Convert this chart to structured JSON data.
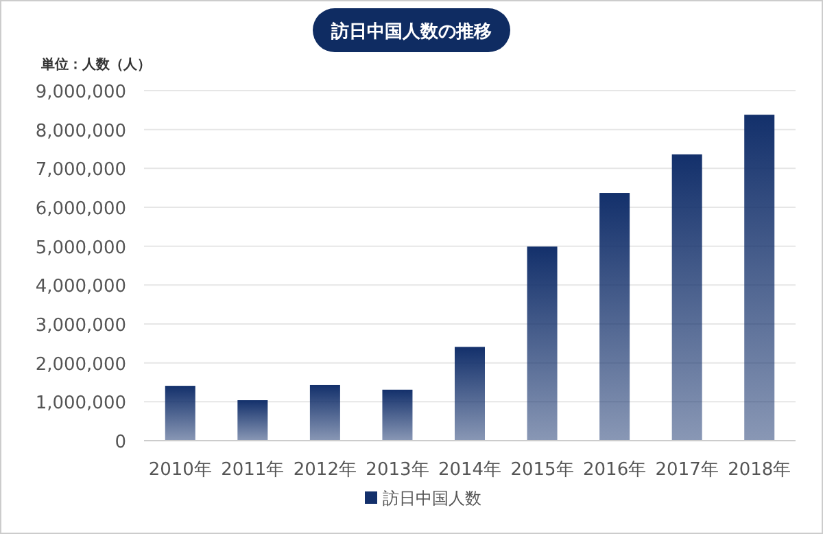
{
  "chart_data": {
    "type": "bar",
    "title": "訪日中国人数の推移",
    "ylabel": "単位：人数（人）",
    "categories": [
      "2010年",
      "2011年",
      "2012年",
      "2013年",
      "2014年",
      "2015年",
      "2016年",
      "2017年",
      "2018年"
    ],
    "series": [
      {
        "name": "訪日中国人数",
        "color": "#13306b",
        "values": [
          1410000,
          1040000,
          1430000,
          1310000,
          2410000,
          4990000,
          6370000,
          7360000,
          8380000
        ]
      }
    ],
    "ylim": [
      0,
      9000000
    ],
    "yticks": [
      {
        "value": 0,
        "label": "0"
      },
      {
        "value": 1000000,
        "label": "1,000,000"
      },
      {
        "value": 2000000,
        "label": "2,000,000"
      },
      {
        "value": 3000000,
        "label": "3,000,000"
      },
      {
        "value": 4000000,
        "label": "4,000,000"
      },
      {
        "value": 5000000,
        "label": "5,000,000"
      },
      {
        "value": 6000000,
        "label": "6,000,000"
      },
      {
        "value": 7000000,
        "label": "7,000,000"
      },
      {
        "value": 8000000,
        "label": "8,000,000"
      },
      {
        "value": 9000000,
        "label": "9,000,000"
      }
    ],
    "grid": "y",
    "legend": "bottom"
  }
}
